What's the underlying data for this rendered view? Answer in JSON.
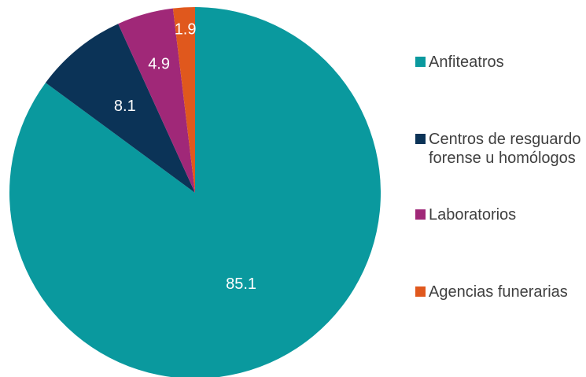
{
  "chart_data": {
    "type": "pie",
    "categories": [
      "Anfiteatros",
      "Centros de resguardo forense u homólogos",
      "Laboratorios",
      "Agencias funerarias"
    ],
    "values": [
      85.1,
      8.1,
      4.9,
      1.9
    ],
    "value_labels": [
      "85.1",
      "8.1",
      "4.9",
      "1.9"
    ],
    "colors": [
      "#0a999e",
      "#0b3357",
      "#a02878",
      "#e0581d"
    ],
    "title": "",
    "legend_position": "right",
    "start_angle": "12 o'clock",
    "direction": "clockwise"
  }
}
